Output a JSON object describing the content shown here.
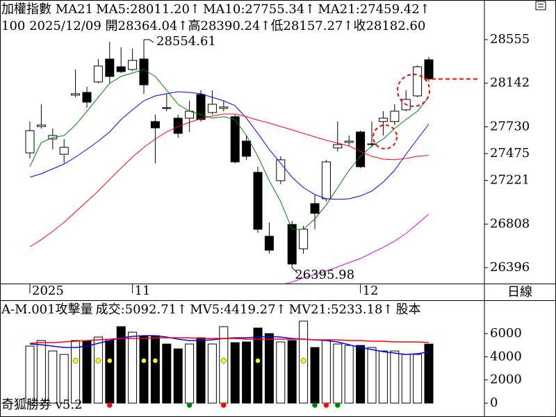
{
  "chart_data": [
    {
      "type": "candlestick",
      "title": "加權指數 MA21",
      "info": "100 2025/12/09 開28364.04↑高28390.24↑低28157.27↑收28182.60",
      "period_label": "日線",
      "categories": [
        "2025",
        null,
        null,
        null,
        null,
        null,
        null,
        null,
        null,
        "11",
        null,
        null,
        null,
        null,
        null,
        null,
        null,
        null,
        null,
        null,
        null,
        null,
        null,
        null,
        null,
        null,
        null,
        null,
        null,
        "12",
        null,
        null,
        null,
        null,
        null,
        null
      ],
      "up_fill": "#ffffff",
      "down_fill": "#000000",
      "candles": [
        {
          "open": 27482,
          "high": 27779,
          "low": 27430,
          "close": 27693
        },
        {
          "open": 27732,
          "high": 27943,
          "low": 27713,
          "close": 27746
        },
        {
          "open": 27614,
          "high": 27713,
          "low": 27515,
          "close": 27647
        },
        {
          "open": 27469,
          "high": 27614,
          "low": 27384,
          "close": 27535
        },
        {
          "open": 28029,
          "high": 28272,
          "low": 28009,
          "close": 28042
        },
        {
          "open": 28055,
          "high": 28108,
          "low": 27910,
          "close": 27963
        },
        {
          "open": 28154,
          "high": 28371,
          "low": 28140,
          "close": 28305
        },
        {
          "open": 28371,
          "high": 28535,
          "low": 28140,
          "close": 28206
        },
        {
          "open": 28298,
          "high": 28483,
          "low": 28239,
          "close": 28252
        },
        {
          "open": 28272,
          "high": 28469,
          "low": 28259,
          "close": 28358
        },
        {
          "open": 28371,
          "high": 28554.61,
          "low": 28042,
          "close": 28127
        },
        {
          "open": 27779,
          "high": 27844,
          "low": 27384,
          "close": 27719
        },
        {
          "open": 27910,
          "high": 28042,
          "low": 27877,
          "close": 27904
        },
        {
          "open": 27811,
          "high": 27844,
          "low": 27627,
          "close": 27667
        },
        {
          "open": 27811,
          "high": 27976,
          "low": 27680,
          "close": 27877
        },
        {
          "open": 28035,
          "high": 28075,
          "low": 27779,
          "close": 27798
        },
        {
          "open": 27864,
          "high": 28075,
          "low": 27844,
          "close": 27943
        },
        {
          "open": 27904,
          "high": 27976,
          "low": 27877,
          "close": 27917
        },
        {
          "open": 27825,
          "high": 27844,
          "low": 27384,
          "close": 27397
        },
        {
          "open": 27594,
          "high": 27647,
          "low": 27417,
          "close": 27450
        },
        {
          "open": 27298,
          "high": 27351,
          "low": 26726,
          "close": 26759
        },
        {
          "open": 26693,
          "high": 26824,
          "low": 26528,
          "close": 26561
        },
        {
          "open": 27219,
          "high": 27450,
          "low": 27186,
          "close": 27417
        },
        {
          "open": 26805,
          "high": 26838,
          "low": 26395.98,
          "close": 26430
        },
        {
          "open": 26574,
          "high": 26792,
          "low": 26528,
          "close": 26759
        },
        {
          "open": 27002,
          "high": 27088,
          "low": 26759,
          "close": 26910
        },
        {
          "open": 27048,
          "high": 27417,
          "low": 27022,
          "close": 27397
        },
        {
          "open": 27529,
          "high": 27779,
          "low": 27496,
          "close": 27561
        },
        {
          "open": 27581,
          "high": 27647,
          "low": 27548,
          "close": 27594
        },
        {
          "open": 27680,
          "high": 27693,
          "low": 27338,
          "close": 27351
        },
        {
          "open": 27561,
          "high": 27779,
          "low": 27535,
          "close": 27568
        },
        {
          "open": 27779,
          "high": 27877,
          "low": 27647,
          "close": 27811
        },
        {
          "open": 27779,
          "high": 27943,
          "low": 27746,
          "close": 27877
        },
        {
          "open": 27890,
          "high": 28075,
          "low": 27877,
          "close": 27989
        },
        {
          "open": 28022,
          "high": 28312,
          "low": 28009,
          "close": 28298
        },
        {
          "open": 28364.04,
          "high": 28390.24,
          "low": 28157.27,
          "close": 28182.6
        }
      ],
      "series": [
        {
          "name": "MA5:28011.20↑",
          "color": "#008000",
          "values": [
            27351,
            27581,
            27627,
            27647,
            27746,
            27877,
            28009,
            28140,
            28206,
            28239,
            28272,
            28206,
            28075,
            27943,
            27877,
            27844,
            27811,
            27825,
            27798,
            27647,
            27450,
            27219,
            27022,
            26759,
            26759,
            26857,
            26989,
            27153,
            27318,
            27450,
            27548,
            27614,
            27713,
            27798,
            27877,
            28011.2
          ]
        },
        {
          "name": "MA10:27755.34↑",
          "color": "#0000ff",
          "values": [
            27252,
            27285,
            27331,
            27377,
            27443,
            27515,
            27594,
            27680,
            27798,
            27890,
            27976,
            28022,
            28042,
            28062,
            28055,
            28042,
            28009,
            27976,
            27930,
            27811,
            27667,
            27515,
            27384,
            27252,
            27153,
            27088,
            27048,
            27042,
            27048,
            27075,
            27121,
            27206,
            27318,
            27469,
            27614,
            27755.34
          ]
        },
        {
          "name": "MA21:27459.42↑",
          "color": "#ff0000",
          "values": [
            26594,
            26660,
            26739,
            26824,
            26923,
            27022,
            27121,
            27232,
            27338,
            27443,
            27535,
            27614,
            27680,
            27732,
            27772,
            27805,
            27831,
            27851,
            27851,
            27825,
            27792,
            27765,
            27732,
            27700,
            27667,
            27634,
            27601,
            27575,
            27548,
            27496,
            27450,
            27423,
            27417,
            27430,
            27450,
            27459.42
          ]
        },
        {
          "color": "#e000e0",
          "values": [
            null,
            null,
            null,
            null,
            null,
            null,
            null,
            null,
            null,
            null,
            null,
            null,
            null,
            null,
            null,
            null,
            null,
            null,
            null,
            null,
            null,
            null,
            26232,
            26259,
            26298,
            26331,
            26364,
            26403,
            26443,
            26482,
            26535,
            26588,
            26647,
            26719,
            26811,
            26903
          ]
        }
      ],
      "ylim": [
        26245,
        28930
      ],
      "yticks": [
        28555,
        28142,
        27730,
        27475,
        27221,
        26808,
        26396
      ]
    },
    {
      "type": "bar",
      "title": "A-M.001攻擊量",
      "extra_label": {
        "text": "股本",
        "color": "#e000e0"
      },
      "footer": "奇狐勝券 v5.2",
      "series": [
        {
          "name": "成交:5092.71↑",
          "color": "#008000",
          "values": [
            4920,
            5400,
            4500,
            4200,
            5400,
            5400,
            5700,
            5400,
            6600,
            6120,
            5820,
            5820,
            5100,
            4680,
            5100,
            5640,
            5100,
            6600,
            5220,
            5280,
            6480,
            6000,
            5280,
            5400,
            7080,
            4800,
            5400,
            5100,
            4980,
            4980,
            4800,
            4500,
            4500,
            4200,
            4200,
            5092.71
          ]
        },
        {
          "name": "MV5:4419.27↑",
          "color": "#0000ff",
          "values": [
            5100,
            5040,
            4920,
            4800,
            4800,
            4920,
            5160,
            5400,
            5640,
            5760,
            5820,
            5820,
            5700,
            5520,
            5400,
            5400,
            5460,
            5580,
            5640,
            5640,
            5700,
            5760,
            5700,
            5580,
            5520,
            5460,
            5400,
            5280,
            5040,
            4800,
            4620,
            4440,
            4320,
            4200,
            4260,
            4419.27
          ]
        },
        {
          "name": "MV21:5233.18↑",
          "color": "#ff0000",
          "values": [
            5160,
            5220,
            5220,
            5280,
            5340,
            5400,
            5460,
            5520,
            5580,
            5580,
            5580,
            5640,
            5640,
            5640,
            5640,
            5580,
            5580,
            5580,
            5580,
            5520,
            5520,
            5520,
            5520,
            5520,
            5520,
            5460,
            5460,
            5460,
            5400,
            5400,
            5340,
            5340,
            5280,
            5280,
            5280,
            5233.18
          ]
        }
      ],
      "markers": [
        {
          "color": "#ffff00",
          "place": "in-bar",
          "indices": [
            4,
            6,
            7,
            10,
            11,
            17,
            20,
            24
          ]
        },
        {
          "color": "#ff0000",
          "place": "below",
          "indices": [
            7,
            17,
            26
          ]
        },
        {
          "color": "#008000",
          "place": "below",
          "indices": [
            14,
            25,
            27
          ]
        }
      ],
      "ylim": [
        -1200,
        8880
      ],
      "yticks": [
        0,
        2000,
        4000,
        6000
      ]
    }
  ]
}
